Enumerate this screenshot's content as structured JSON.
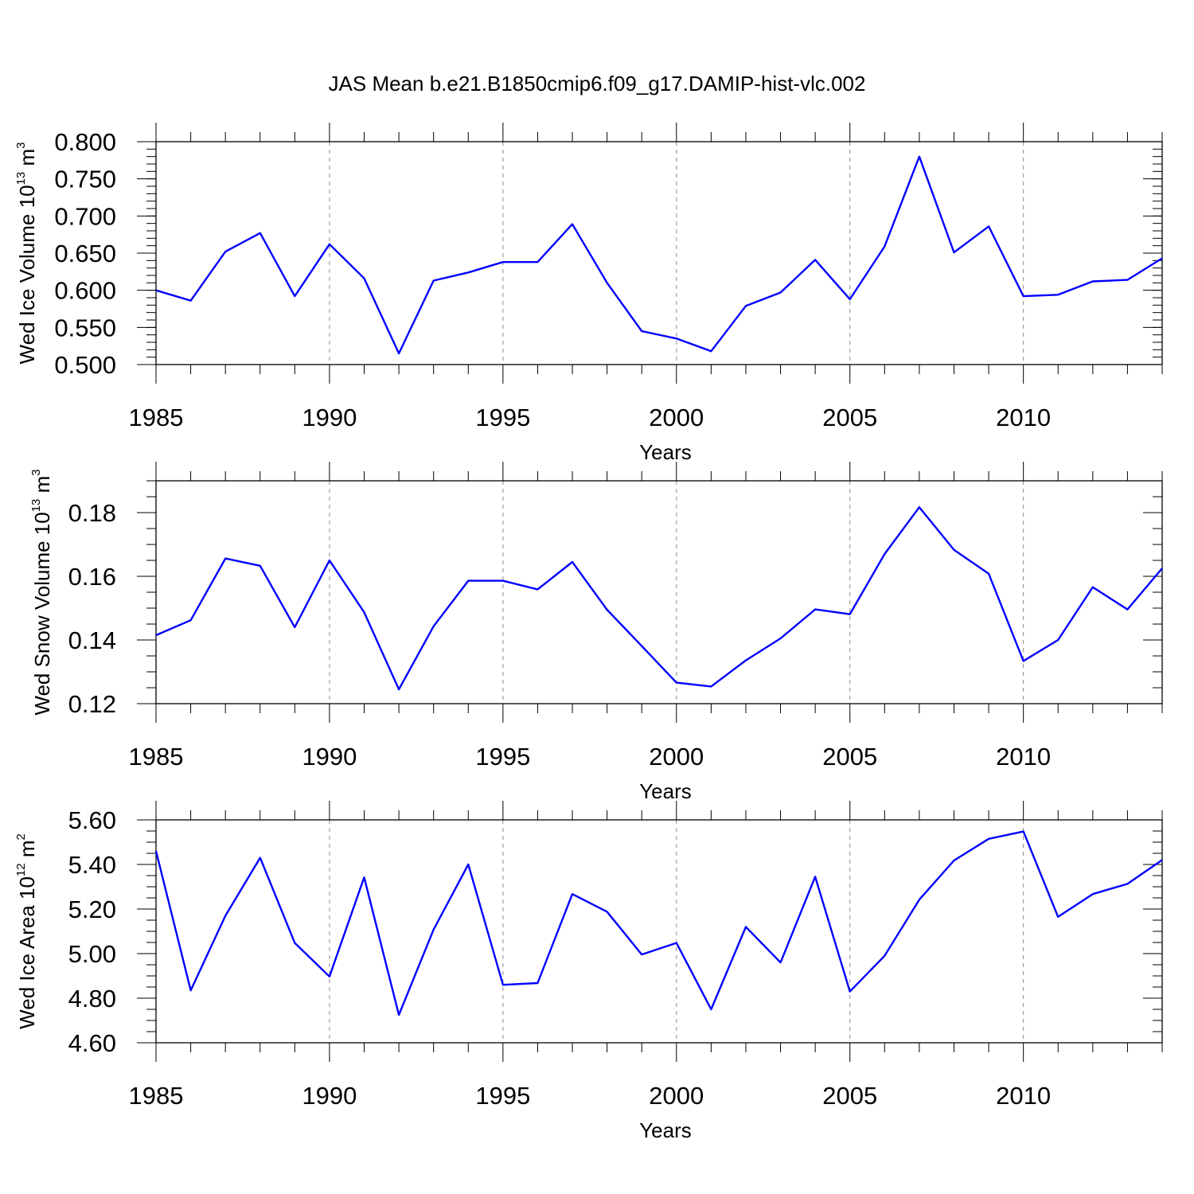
{
  "title": "JAS Mean b.e21.B1850cmip6.f09_g17.DAMIP-hist-vlc.002",
  "colors": {
    "line": "#0000ff",
    "grid": "#8a8a8a",
    "axis": "#000000"
  },
  "chart_data": [
    {
      "type": "line",
      "xlabel": "Years",
      "ylabel": {
        "text": "Wed Ice Volume 10",
        "exp1": "13",
        "unit": " m",
        "exp2": "3"
      },
      "xlim": [
        1985,
        2014
      ],
      "ylim": [
        0.5,
        0.8
      ],
      "x_ticks": [
        1985,
        1990,
        1995,
        2000,
        2005,
        2010
      ],
      "x_tick_labels": [
        "1985",
        "1990",
        "1995",
        "2000",
        "2005",
        "2010"
      ],
      "y_ticks": [
        0.5,
        0.55,
        0.6,
        0.65,
        0.7,
        0.75,
        0.8
      ],
      "y_tick_labels": [
        "0.500",
        "0.550",
        "0.600",
        "0.650",
        "0.700",
        "0.750",
        "0.800"
      ],
      "y_minor_step": 0.01,
      "grid": "vertical-dashed",
      "x": [
        1985,
        1986,
        1987,
        1988,
        1989,
        1990,
        1991,
        1992,
        1993,
        1994,
        1995,
        1996,
        1997,
        1998,
        1999,
        2000,
        2001,
        2002,
        2003,
        2004,
        2005,
        2006,
        2007,
        2008,
        2009,
        2010,
        2011,
        2012,
        2013,
        2014
      ],
      "values": [
        0.6,
        0.586,
        0.652,
        0.677,
        0.592,
        0.662,
        0.616,
        0.515,
        0.613,
        0.624,
        0.638,
        0.638,
        0.689,
        0.61,
        0.545,
        0.535,
        0.518,
        0.579,
        0.597,
        0.641,
        0.588,
        0.659,
        0.78,
        0.651,
        0.686,
        0.592,
        0.594,
        0.612,
        0.614,
        0.643
      ]
    },
    {
      "type": "line",
      "xlabel": "Years",
      "ylabel": {
        "text": "Wed Snow Volume 10",
        "exp1": "13",
        "unit": " m",
        "exp2": "3"
      },
      "xlim": [
        1985,
        2014
      ],
      "ylim": [
        0.12,
        0.19
      ],
      "x_ticks": [
        1985,
        1990,
        1995,
        2000,
        2005,
        2010
      ],
      "x_tick_labels": [
        "1985",
        "1990",
        "1995",
        "2000",
        "2005",
        "2010"
      ],
      "y_ticks": [
        0.12,
        0.14,
        0.16,
        0.18
      ],
      "y_tick_labels": [
        "0.12",
        "0.14",
        "0.16",
        "0.18"
      ],
      "y_minor_step": 0.005,
      "grid": "vertical-dashed",
      "x": [
        1985,
        1986,
        1987,
        1988,
        1989,
        1990,
        1991,
        1992,
        1993,
        1994,
        1995,
        1996,
        1997,
        1998,
        1999,
        2000,
        2001,
        2002,
        2003,
        2004,
        2005,
        2006,
        2007,
        2008,
        2009,
        2010,
        2011,
        2012,
        2013,
        2014
      ],
      "values": [
        0.1415,
        0.1462,
        0.1656,
        0.1633,
        0.144,
        0.165,
        0.1487,
        0.1245,
        0.1443,
        0.1586,
        0.1586,
        0.1559,
        0.1645,
        0.1495,
        0.1381,
        0.1266,
        0.1254,
        0.1336,
        0.1405,
        0.1496,
        0.1481,
        0.167,
        0.1817,
        0.1683,
        0.1608,
        0.1334,
        0.14,
        0.1566,
        0.1496,
        0.1625
      ]
    },
    {
      "type": "line",
      "xlabel": "Years",
      "ylabel": {
        "text": "Wed Ice Area 10",
        "exp1": "12",
        "unit": " m",
        "exp2": "2"
      },
      "xlim": [
        1985,
        2014
      ],
      "ylim": [
        4.6,
        5.6
      ],
      "x_ticks": [
        1985,
        1990,
        1995,
        2000,
        2005,
        2010
      ],
      "x_tick_labels": [
        "1985",
        "1990",
        "1995",
        "2000",
        "2005",
        "2010"
      ],
      "y_ticks": [
        4.6,
        4.8,
        5.0,
        5.2,
        5.4,
        5.6
      ],
      "y_tick_labels": [
        "4.60",
        "4.80",
        "5.00",
        "5.20",
        "5.40",
        "5.60"
      ],
      "y_minor_step": 0.05,
      "grid": "vertical-dashed",
      "x": [
        1985,
        1986,
        1987,
        1988,
        1989,
        1990,
        1991,
        1992,
        1993,
        1994,
        1995,
        1996,
        1997,
        1998,
        1999,
        2000,
        2001,
        2002,
        2003,
        2004,
        2005,
        2006,
        2007,
        2008,
        2009,
        2010,
        2011,
        2012,
        2013,
        2014
      ],
      "values": [
        5.46,
        4.835,
        5.17,
        5.43,
        5.048,
        4.897,
        5.342,
        4.725,
        5.108,
        5.4,
        4.86,
        4.868,
        5.267,
        5.188,
        4.996,
        5.048,
        4.75,
        5.12,
        4.96,
        5.345,
        4.83,
        4.99,
        5.242,
        5.418,
        5.515,
        5.548,
        5.165,
        5.267,
        5.313,
        5.42
      ]
    }
  ]
}
